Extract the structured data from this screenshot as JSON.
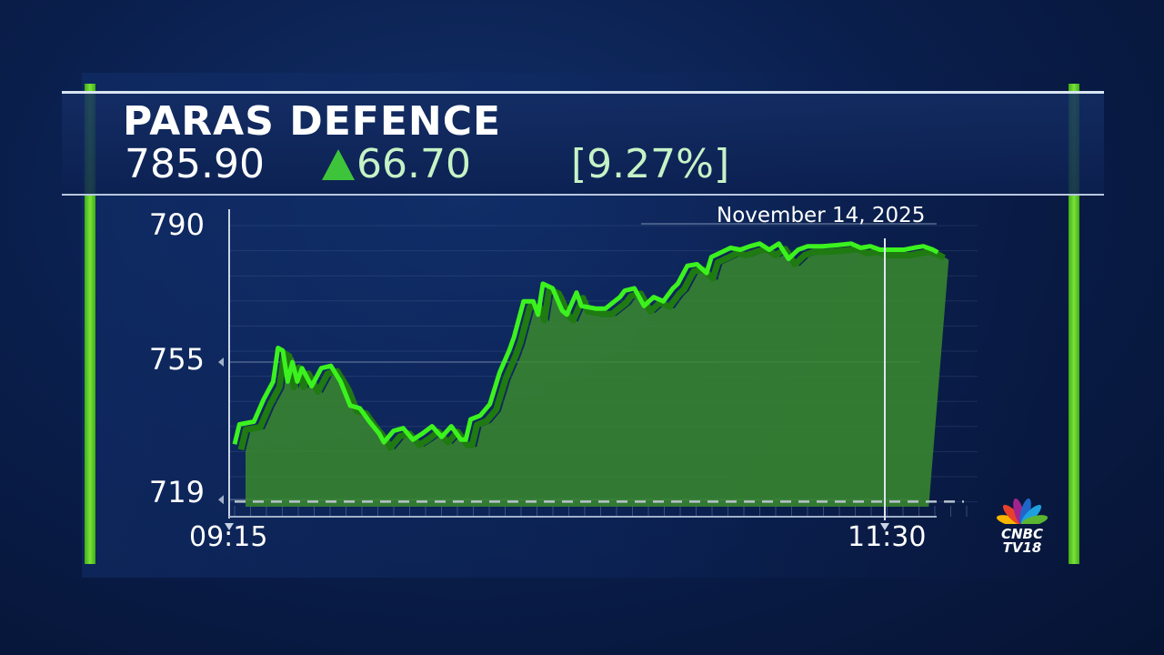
{
  "header": {
    "title": "PARAS DEFENCE",
    "price": "785.90",
    "change": "66.70",
    "change_pct": "[9.27%]",
    "direction_icon": "triangle-up-icon"
  },
  "brand": {
    "line1": "CNBC",
    "line2": "TV18"
  },
  "colors": {
    "line": "#3cf21e",
    "fill": "#3a8a2e",
    "up": "#3ec43a",
    "background": "#0a1f4d"
  },
  "chart_data": {
    "type": "area",
    "title": "",
    "date_label": "November 14, 2025",
    "y_ticks": [
      "790",
      "755",
      "719"
    ],
    "x_ticks": [
      "09:15",
      "11:30"
    ],
    "ylim": [
      719,
      790
    ],
    "reference_line": {
      "value": 719.2,
      "style": "dashed"
    },
    "x": [
      "09:15",
      "09:16",
      "09:19",
      "09:21",
      "09:23",
      "09:24",
      "09:25",
      "09:26",
      "09:27",
      "09:28",
      "09:29",
      "09:31",
      "09:33",
      "09:35",
      "09:37",
      "09:39",
      "09:41",
      "09:43",
      "09:45",
      "09:46",
      "09:48",
      "09:50",
      "09:52",
      "09:54",
      "09:56",
      "09:58",
      "10:00",
      "10:02",
      "10:03",
      "10:04",
      "10:06",
      "10:08",
      "10:10",
      "10:12",
      "10:13",
      "10:15",
      "10:17",
      "10:18",
      "10:19",
      "10:21",
      "10:23",
      "10:24",
      "10:26",
      "10:27",
      "10:30",
      "10:32",
      "10:35",
      "10:36",
      "10:38",
      "10:40",
      "10:42",
      "10:44",
      "10:46",
      "10:47",
      "10:49",
      "10:51",
      "10:53",
      "10:54",
      "10:56",
      "10:58",
      "11:00",
      "11:02",
      "11:04",
      "11:06",
      "11:08",
      "11:10",
      "11:12",
      "11:14",
      "11:17",
      "11:20",
      "11:23",
      "11:25",
      "11:27",
      "11:29",
      "11:31",
      "11:34",
      "11:36",
      "11:38",
      "11:40",
      "11:41"
    ],
    "values": [
      733.5,
      738.7,
      739.4,
      745.2,
      749.9,
      758.7,
      758,
      749.9,
      755,
      749.9,
      753.4,
      748.7,
      753.4,
      754,
      749.9,
      743.6,
      742.9,
      739.4,
      736.3,
      734,
      737,
      737.7,
      734.7,
      736.3,
      738.2,
      735.4,
      738.2,
      734.7,
      734.7,
      740,
      741,
      744,
      752.2,
      758,
      761.5,
      770.9,
      770.9,
      767.4,
      775.5,
      774.3,
      768.5,
      767.4,
      773.2,
      769.7,
      769,
      769,
      772,
      773.7,
      774.3,
      769.7,
      772,
      770.9,
      774.3,
      775.5,
      780.2,
      780.6,
      778.3,
      782.5,
      783.7,
      784.9,
      784.4,
      785.3,
      786,
      784.4,
      786,
      782,
      784.4,
      785.3,
      785.3,
      785.6,
      786,
      784.9,
      785.3,
      784.4,
      784.4,
      784.4,
      784.9,
      785.3,
      784.4,
      783.7
    ],
    "grid": true
  }
}
